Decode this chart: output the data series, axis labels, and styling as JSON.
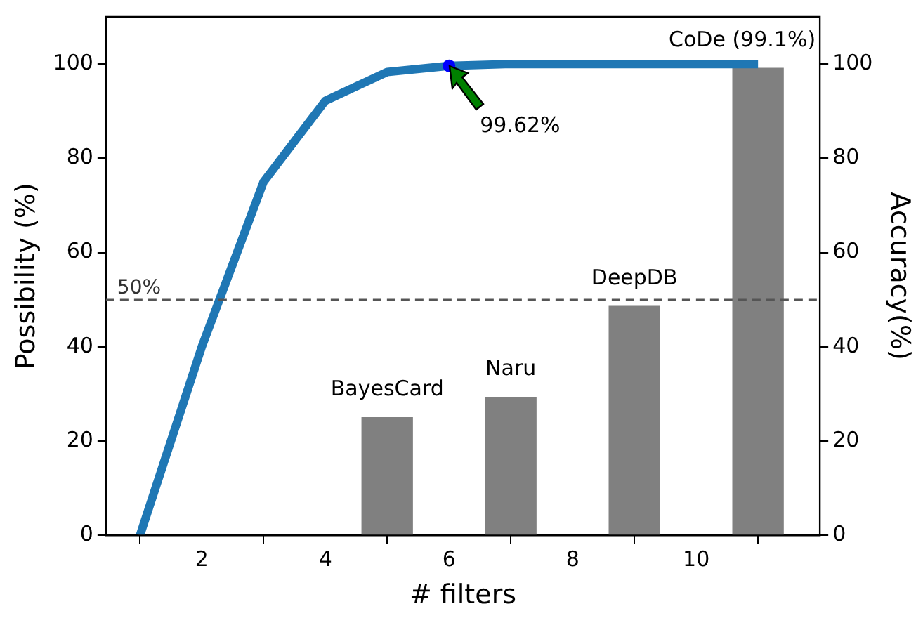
{
  "chart_data": {
    "type": "line",
    "xlabel": "# filters",
    "ylabel": "Possibility (%)",
    "y2label": "Accuracy(%)",
    "xlim": [
      0.45,
      12.0
    ],
    "xticks": [
      2,
      4,
      6,
      8,
      10
    ],
    "ylim": [
      0,
      110
    ],
    "yticks": [
      0,
      20,
      40,
      60,
      80,
      100
    ],
    "y2lim": [
      0,
      110
    ],
    "y2ticks": [
      0,
      20,
      40,
      60,
      80,
      100
    ],
    "grid": false,
    "legend": false,
    "series": [
      {
        "color": "#1f77b4",
        "marker": "none",
        "x": [
          1,
          2,
          3,
          4,
          5,
          6,
          7,
          8,
          9,
          10,
          11
        ],
        "values": [
          0,
          40,
          75,
          92.2,
          98.3,
          99.62,
          100,
          100,
          100,
          100,
          100
        ]
      },
      {
        "type": "scatter",
        "color": "#0000ff",
        "marker": "circle",
        "x": [
          6
        ],
        "values": [
          99.62
        ]
      },
      {
        "type": "bar",
        "axis": "y2",
        "color": "#808080",
        "x": [
          5,
          7,
          9,
          11
        ],
        "values": [
          25,
          29.3,
          48.6,
          99.1
        ]
      }
    ],
    "ref_lines": [
      {
        "axis": "y",
        "value": 50,
        "label": "50%",
        "color": "#555555",
        "line_style": "dashed"
      }
    ],
    "annotations": [
      {
        "text": "BayesCard",
        "x": 5,
        "y": 25
      },
      {
        "text": "Naru",
        "x": 7,
        "y": 29.3
      },
      {
        "text": "DeepDB",
        "x": 9,
        "y": 48.6
      },
      {
        "text": "CoDe (99.1%)",
        "x": 11,
        "y": 99.1
      },
      {
        "text": "99.62%",
        "x": 6,
        "y": 99.62
      }
    ]
  }
}
